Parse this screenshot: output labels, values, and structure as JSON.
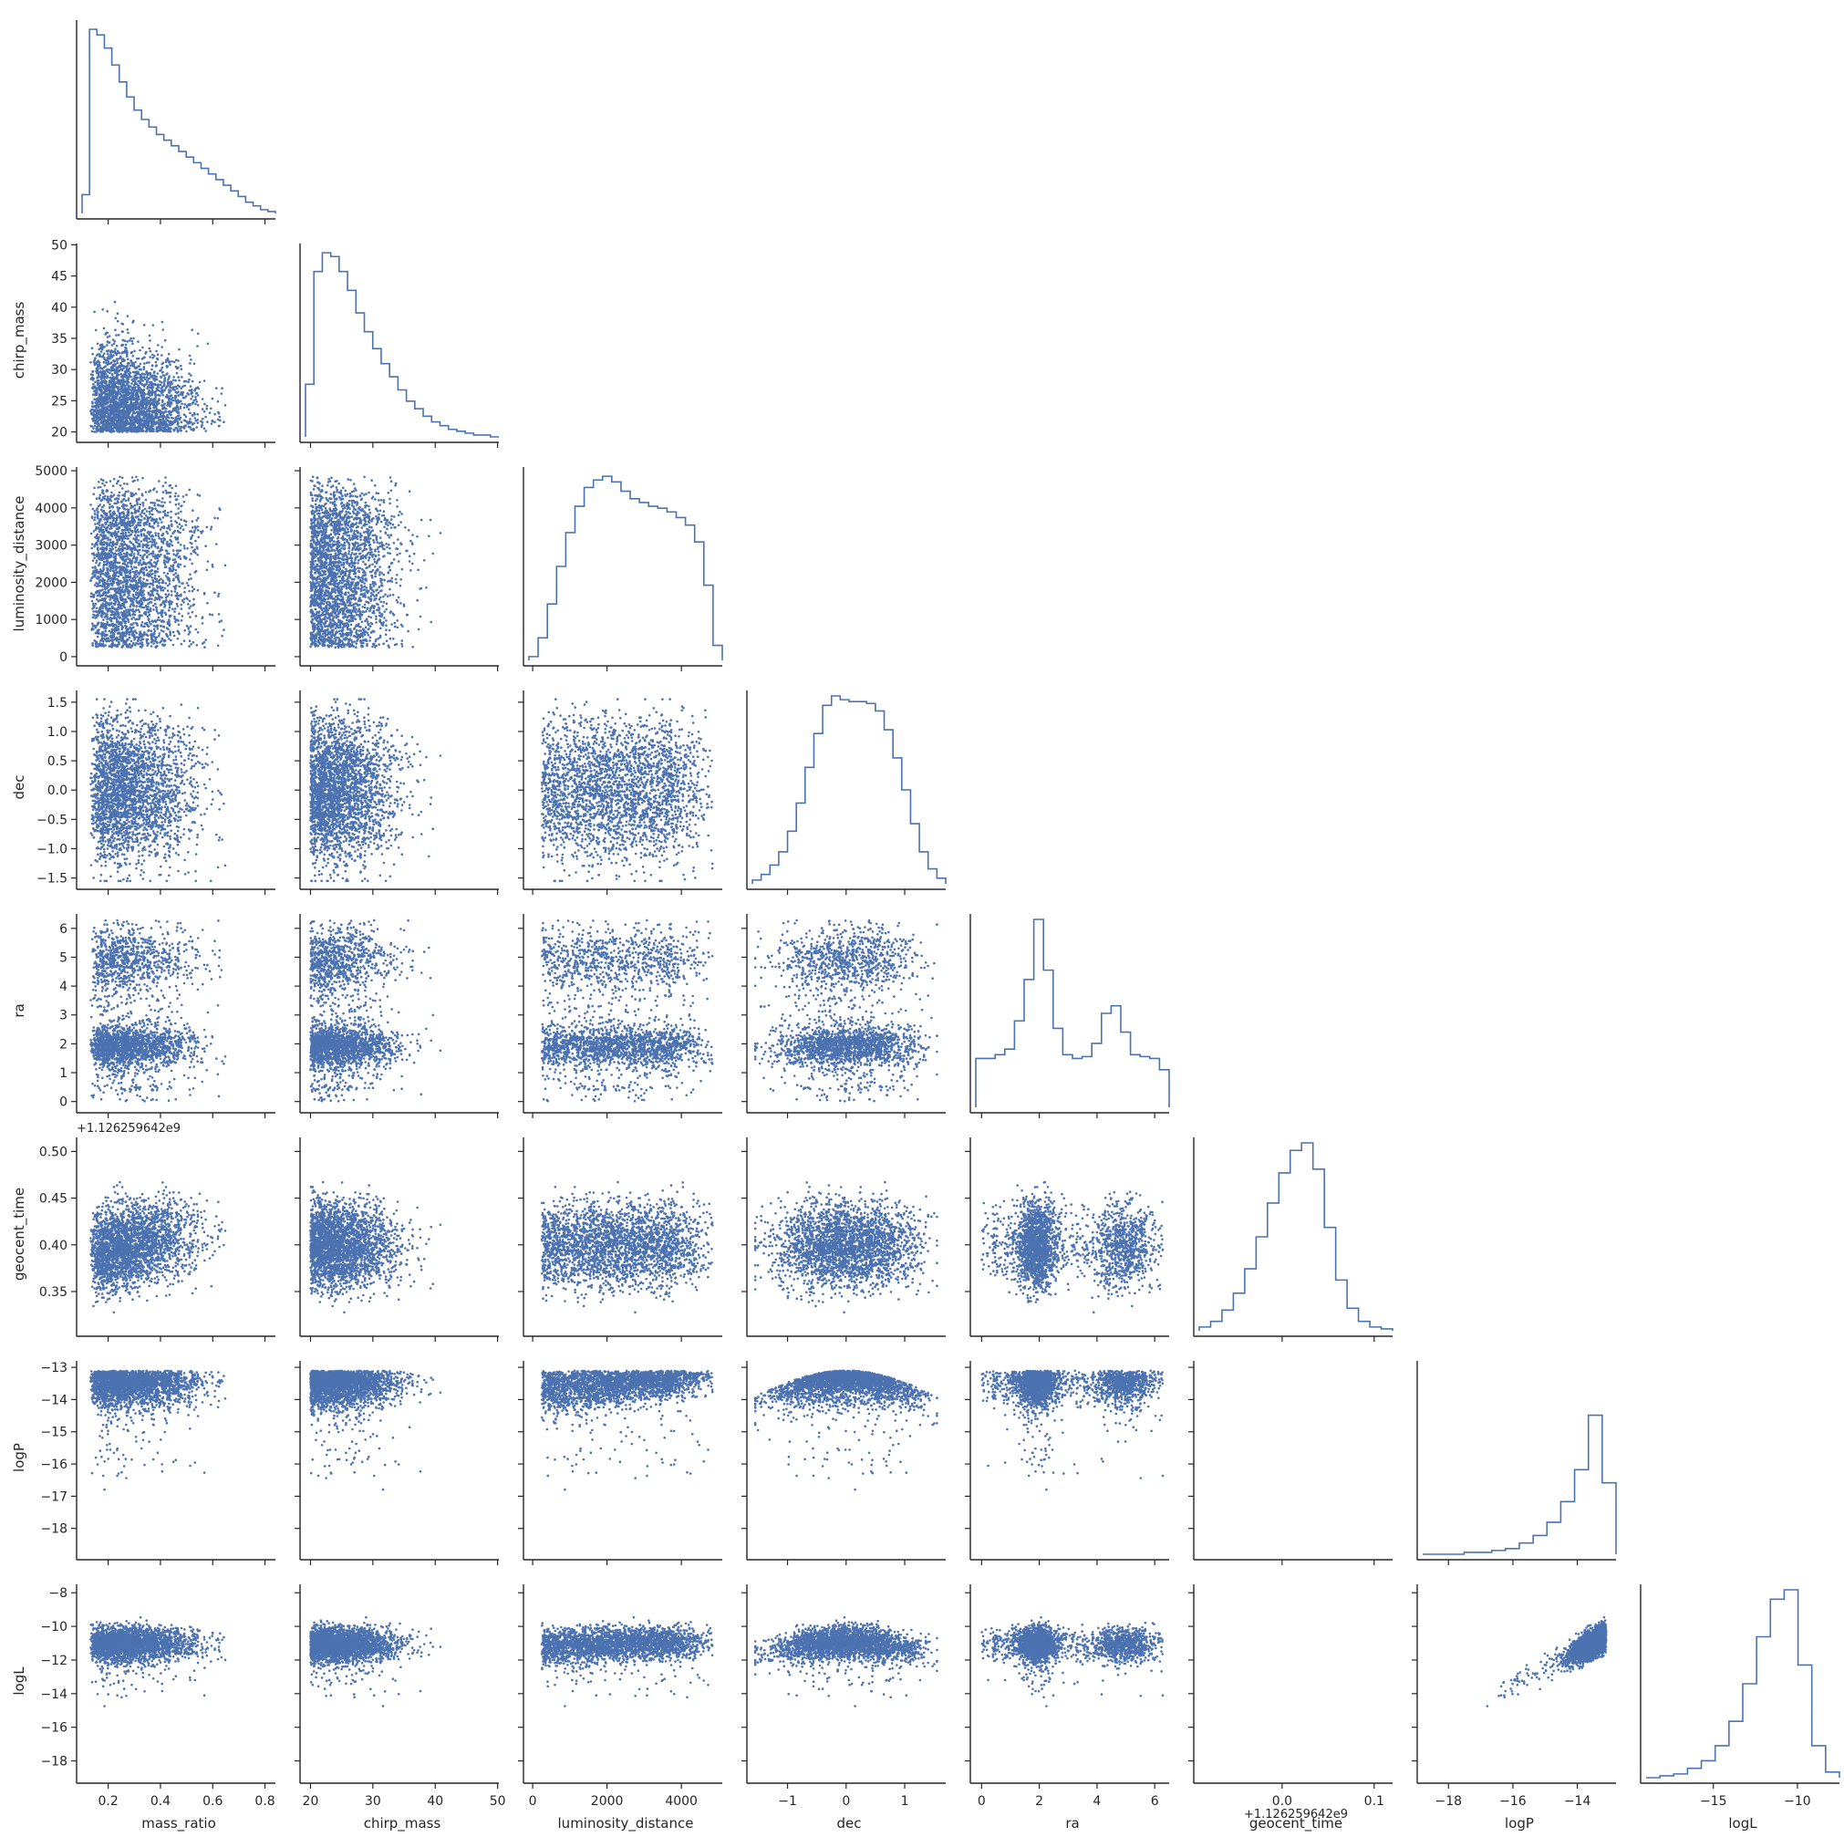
{
  "chart_data": {
    "type": "scatter",
    "title": "",
    "variables": [
      "mass_ratio",
      "chirp_mass",
      "luminosity_distance",
      "dec",
      "ra",
      "geocent_time",
      "logP",
      "logL"
    ],
    "axis_offsets": {
      "geocent_time_y": "+1.126259642e9",
      "geocent_time_x": "+1.126259642e9"
    },
    "axes": [
      {
        "name": "mass_ratio",
        "range": [
          0.1,
          0.84
        ],
        "ticks": [
          0.2,
          0.4,
          0.6,
          0.8
        ],
        "tick_labels": [
          "0.2",
          "0.4",
          "0.6",
          "0.8"
        ]
      },
      {
        "name": "chirp_mass",
        "range": [
          19.2,
          50.2
        ],
        "ticks": [
          20,
          25,
          30,
          35,
          40,
          45,
          50
        ],
        "tick_labels": [
          "20",
          "25",
          "30",
          "35",
          "40",
          "45",
          "50"
        ],
        "x_ticks": [
          20,
          30,
          40,
          50
        ],
        "x_tick_labels": [
          "20",
          "30",
          "40",
          "50"
        ]
      },
      {
        "name": "luminosity_distance",
        "range": [
          -100,
          5100
        ],
        "ticks": [
          0,
          1000,
          2000,
          3000,
          4000,
          5000
        ],
        "tick_labels": [
          "0",
          "1000",
          "2000",
          "3000",
          "4000",
          "5000"
        ],
        "x_ticks": [
          0,
          2000,
          4000
        ],
        "x_tick_labels": [
          "0",
          "2000",
          "4000"
        ]
      },
      {
        "name": "dec",
        "range": [
          -1.6,
          1.7
        ],
        "ticks": [
          -1.5,
          -1.0,
          -0.5,
          0.0,
          0.5,
          1.0,
          1.5
        ],
        "tick_labels": [
          "−1.5",
          "−1.0",
          "−0.5",
          "0.0",
          "0.5",
          "1.0",
          "1.5"
        ],
        "x_ticks": [
          -1,
          0,
          1
        ],
        "x_tick_labels": [
          "−1",
          "0",
          "1"
        ]
      },
      {
        "name": "ra",
        "range": [
          -0.2,
          6.5
        ],
        "ticks": [
          0,
          1,
          2,
          3,
          4,
          5,
          6
        ],
        "tick_labels": [
          "0",
          "1",
          "2",
          "3",
          "4",
          "5",
          "6"
        ],
        "x_ticks": [
          0,
          2,
          4,
          6
        ],
        "x_tick_labels": [
          "0",
          "2",
          "4",
          "6"
        ]
      },
      {
        "name": "geocent_time",
        "range": [
          0.308,
          0.515
        ],
        "ticks": [
          0.35,
          0.4,
          0.45,
          0.5
        ],
        "tick_labels": [
          "0.35",
          "0.40",
          "0.45",
          "0.50"
        ],
        "x_range": [
          -0.09,
          0.12
        ],
        "x_ticks": [
          0.0,
          0.1
        ],
        "x_tick_labels": [
          "0.0",
          "0.1"
        ],
        "x_offset_label": "+1.126259642e9"
      },
      {
        "name": "logP",
        "range": [
          -18.8,
          -12.8
        ],
        "ticks": [
          -18,
          -17,
          -16,
          -15,
          -14,
          -13
        ],
        "tick_labels": [
          "−18",
          "−17",
          "−16",
          "−15",
          "−14",
          "−13"
        ],
        "x_ticks": [
          -18,
          -16,
          -14
        ],
        "x_tick_labels": [
          "−18",
          "−16",
          "−14"
        ]
      },
      {
        "name": "logL",
        "range": [
          -19.0,
          -7.5
        ],
        "ticks": [
          -18,
          -16,
          -14,
          -12,
          -10,
          -8
        ],
        "tick_labels": [
          "−18",
          "−16",
          "−14",
          "−12",
          "−10",
          "−8"
        ],
        "x_range": [
          -19.0,
          -7.5
        ],
        "x_ticks": [
          -15,
          -10
        ],
        "x_tick_labels": [
          "−15",
          "−10"
        ]
      }
    ],
    "diagonal_histograms": {
      "mass_ratio": [
        0.1,
        0.98,
        0.95,
        0.88,
        0.79,
        0.7,
        0.62,
        0.55,
        0.5,
        0.46,
        0.42,
        0.39,
        0.36,
        0.33,
        0.3,
        0.27,
        0.24,
        0.21,
        0.18,
        0.15,
        0.12,
        0.09,
        0.06,
        0.04,
        0.02,
        0.01
      ],
      "chirp_mass": [
        0.28,
        0.88,
        0.98,
        0.96,
        0.88,
        0.78,
        0.66,
        0.56,
        0.47,
        0.39,
        0.32,
        0.25,
        0.19,
        0.15,
        0.11,
        0.08,
        0.06,
        0.04,
        0.03,
        0.02,
        0.01,
        0.01,
        0.0
      ],
      "luminosity_distance": [
        0.02,
        0.12,
        0.3,
        0.5,
        0.68,
        0.82,
        0.92,
        0.96,
        0.98,
        0.95,
        0.9,
        0.86,
        0.84,
        0.82,
        0.81,
        0.79,
        0.76,
        0.72,
        0.63,
        0.4,
        0.08
      ],
      "dec": [
        0.02,
        0.05,
        0.1,
        0.17,
        0.28,
        0.43,
        0.62,
        0.8,
        0.95,
        1.0,
        0.98,
        0.97,
        0.97,
        0.96,
        0.92,
        0.82,
        0.67,
        0.5,
        0.32,
        0.17,
        0.08,
        0.03
      ],
      "ra": [
        0.26,
        0.26,
        0.28,
        0.31,
        0.46,
        0.68,
        1.0,
        0.73,
        0.42,
        0.28,
        0.26,
        0.27,
        0.34,
        0.5,
        0.54,
        0.4,
        0.28,
        0.27,
        0.26,
        0.2
      ],
      "geocent_time": [
        0.02,
        0.05,
        0.11,
        0.2,
        0.33,
        0.5,
        0.68,
        0.84,
        0.96,
        1.0,
        0.86,
        0.55,
        0.27,
        0.12,
        0.05,
        0.02,
        0.01
      ],
      "logP": [
        0.0,
        0.0,
        0.0,
        0.01,
        0.01,
        0.02,
        0.03,
        0.06,
        0.1,
        0.17,
        0.28,
        0.45,
        0.74,
        0.38
      ],
      "logL": [
        0.0,
        0.01,
        0.02,
        0.05,
        0.09,
        0.17,
        0.3,
        0.5,
        0.75,
        0.95,
        1.0,
        0.6,
        0.17,
        0.03
      ]
    },
    "point_color": "#4c72b0",
    "background": "#ffffff",
    "grid": false,
    "legend": "none",
    "layout": "lower-triangular pair plot (scatter below diagonal, histograms on diagonal)"
  }
}
